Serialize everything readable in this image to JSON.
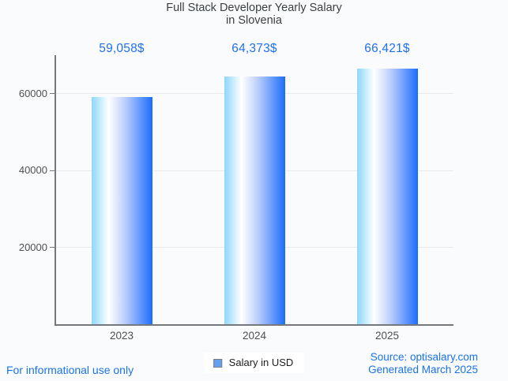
{
  "title": {
    "line1": "Full Stack Developer Yearly Salary",
    "line2": "in Slovenia"
  },
  "legend": {
    "label": "Salary in USD"
  },
  "footer": {
    "left": "For informational use only",
    "source": "Source: optisalary.com",
    "generated": "Generated March 2025"
  },
  "colors": {
    "background": "#fafbfd",
    "title_text": "#3c4043",
    "axis_text": "#4d5156",
    "value_text": "#2270f2",
    "footer_text": "#1a73e8",
    "gridline": "#e8eaef",
    "axis_line": "#75797e",
    "legend_swatch": "#63a0ef",
    "legend_swatch_border": "#797d82"
  },
  "chart_data": {
    "type": "bar",
    "title": "Full Stack Developer Yearly Salary in Slovenia",
    "categories": [
      "2023",
      "2024",
      "2025"
    ],
    "values": [
      59058,
      64373,
      66421
    ],
    "value_labels": [
      "59,058$",
      "64,373$",
      "66,421$"
    ],
    "series_name": "Salary in USD",
    "xlabel": "",
    "ylabel": "",
    "ylim": [
      0,
      70000
    ],
    "yticks": [
      20000,
      40000,
      60000
    ],
    "ytick_labels": [
      "20000",
      "40000",
      "60000"
    ],
    "grid": true,
    "legend_position": "bottom",
    "bar_gradient": [
      {
        "color": "#8cd7fb",
        "at": "0%"
      },
      {
        "color": "#ffffff",
        "at": "28%"
      },
      {
        "color": "#bccefc",
        "at": "55%"
      },
      {
        "color": "#1b6dfc",
        "at": "100%"
      }
    ]
  }
}
